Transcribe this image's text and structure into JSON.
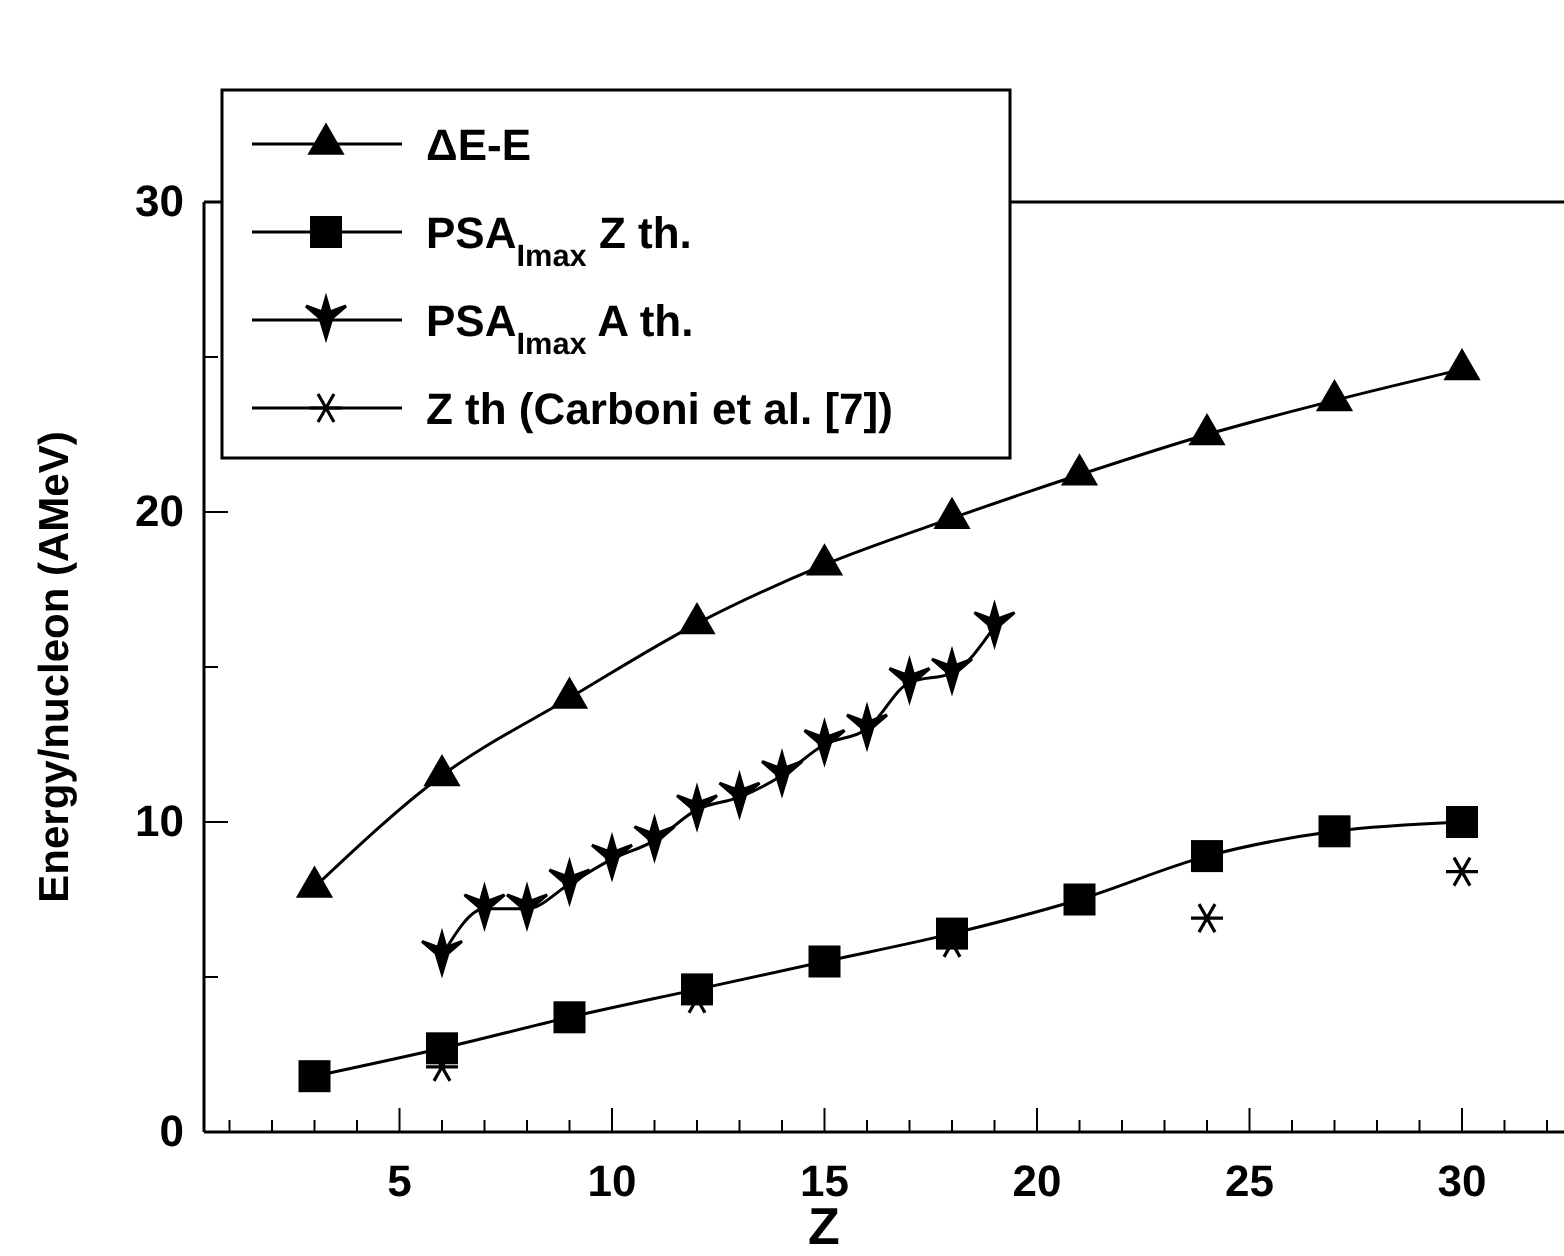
{
  "chart_data": {
    "type": "line",
    "xlabel": "Z",
    "ylabel": "Energy/nucleon (AMeV)",
    "xlim": [
      0.4,
      32.4
    ],
    "ylim": [
      0,
      30
    ],
    "xticks": [
      {
        "value": 1,
        "label": null
      },
      {
        "value": 2,
        "label": null
      },
      {
        "value": 3,
        "label": null
      },
      {
        "value": 4,
        "label": null
      },
      5,
      {
        "value": 6,
        "label": null
      },
      {
        "value": 7,
        "label": null
      },
      {
        "value": 8,
        "label": null
      },
      {
        "value": 9,
        "label": null
      },
      10,
      {
        "value": 11,
        "label": null
      },
      {
        "value": 12,
        "label": null
      },
      {
        "value": 13,
        "label": null
      },
      {
        "value": 14,
        "label": null
      },
      15,
      {
        "value": 16,
        "label": null
      },
      {
        "value": 17,
        "label": null
      },
      {
        "value": 18,
        "label": null
      },
      {
        "value": 19,
        "label": null
      },
      20,
      {
        "value": 21,
        "label": null
      },
      {
        "value": 22,
        "label": null
      },
      {
        "value": 23,
        "label": null
      },
      {
        "value": 24,
        "label": null
      },
      25,
      {
        "value": 26,
        "label": null
      },
      {
        "value": 27,
        "label": null
      },
      {
        "value": 28,
        "label": null
      },
      {
        "value": 29,
        "label": null
      },
      30,
      {
        "value": 31,
        "label": null
      },
      {
        "value": 32,
        "label": null
      }
    ],
    "yticks": [
      0,
      {
        "value": 5,
        "label": null
      },
      10,
      {
        "value": 15,
        "label": null
      },
      20,
      {
        "value": 25,
        "label": null
      },
      30
    ],
    "grid": false,
    "legend": "top left",
    "series": [
      {
        "name": "ΔE-E",
        "color": "#000000",
        "marker": "triangle",
        "line_style": "solid",
        "x": [
          3,
          6,
          9,
          12,
          15,
          18,
          21,
          24,
          27,
          30
        ],
        "values": [
          7.9,
          11.5,
          14.0,
          16.4,
          18.3,
          19.8,
          21.2,
          22.5,
          23.6,
          24.6
        ]
      },
      {
        "name": "PSA$_{Imax}$ Z th.",
        "color": "#000000",
        "marker": "square",
        "line_style": "solid",
        "x": [
          3,
          6,
          9,
          12,
          15,
          18,
          21,
          24,
          27,
          30
        ],
        "values": [
          1.8,
          2.7,
          3.7,
          4.6,
          5.5,
          6.4,
          7.5,
          8.9,
          9.7,
          10.0
        ]
      },
      {
        "name": "PSA$_{Imax}$ A th.",
        "color": "#000000",
        "marker": "star",
        "line_style": "solid",
        "x": [
          6,
          7,
          8,
          9,
          10,
          11,
          12,
          13,
          14,
          15,
          16,
          17,
          18,
          19
        ],
        "values": [
          5.7,
          7.2,
          7.2,
          8.0,
          8.8,
          9.4,
          10.4,
          10.8,
          11.5,
          12.5,
          13.0,
          14.5,
          14.8,
          16.3
        ]
      },
      {
        "name": "Z th (Carboni et al. [7])",
        "color": "#000000",
        "type": "scatter",
        "marker": "cross",
        "x": [
          6,
          12,
          18,
          24,
          30
        ],
        "values": [
          2.1,
          4.3,
          6.1,
          6.9,
          8.4
        ]
      }
    ]
  }
}
